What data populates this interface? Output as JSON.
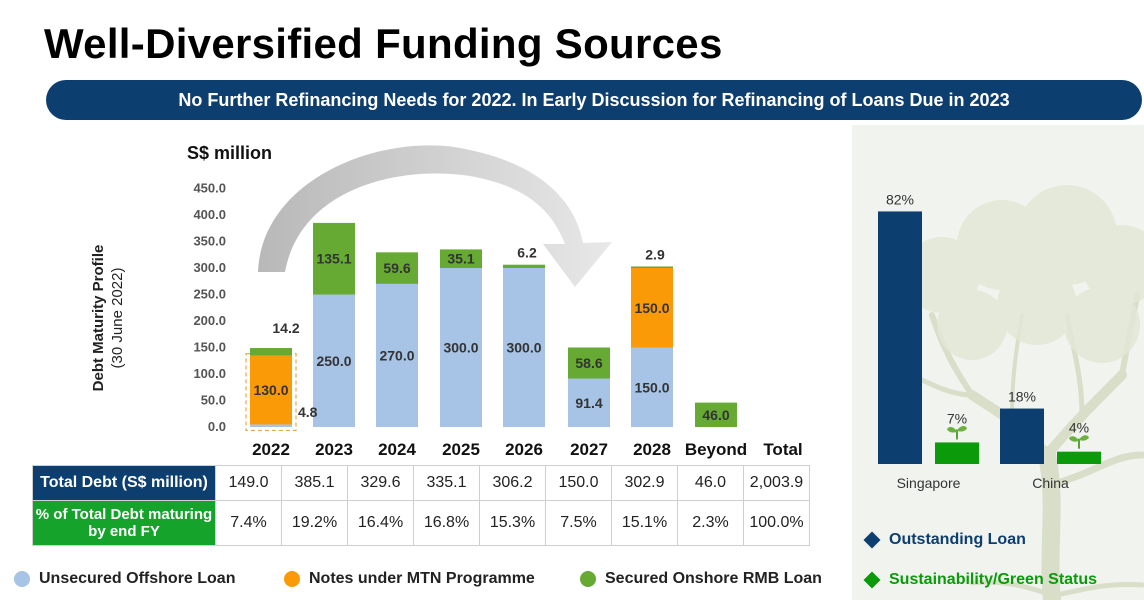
{
  "page": {
    "title": "Well-Diversified Funding Sources",
    "subtitle": "No Further Refinancing Needs for 2022. In Early Discussion for Refinancing of Loans Due in 2023"
  },
  "chart_data": [
    {
      "type": "bar",
      "stacked": true,
      "unit_label": "S$ million",
      "ylabel_line1": "Debt Maturity Profile",
      "ylabel_line2": "(30 June 2022)",
      "ylim": [
        0,
        450
      ],
      "yticks": [
        "0.0",
        "50.0",
        "100.0",
        "150.0",
        "200.0",
        "250.0",
        "300.0",
        "350.0",
        "400.0",
        "450.0"
      ],
      "categories": [
        "2022",
        "2023",
        "2024",
        "2025",
        "2026",
        "2027",
        "2028",
        "Beyond",
        "Total"
      ],
      "series": [
        {
          "name": "Unsecured Offshore Loan",
          "color": "#a7c4e6",
          "values": [
            4.8,
            250.0,
            270.0,
            300.0,
            300.0,
            91.4,
            150.0,
            0,
            null
          ],
          "labels": [
            "4.8",
            "250.0",
            "270.0",
            "300.0",
            "300.0",
            "91.4",
            "150.0",
            "",
            ""
          ]
        },
        {
          "name": "Notes under MTN Programme",
          "color": "#fb9a07",
          "values": [
            130.0,
            0,
            0,
            0,
            0,
            0,
            150.0,
            0,
            null
          ],
          "labels": [
            "130.0",
            "",
            "",
            "",
            "",
            "",
            "150.0",
            "",
            ""
          ]
        },
        {
          "name": "Secured Onshore RMB Loan",
          "color": "#66aa33",
          "values": [
            14.2,
            135.1,
            59.6,
            35.1,
            6.2,
            58.6,
            2.9,
            46.0,
            null
          ],
          "labels": [
            "14.2",
            "135.1",
            "59.6",
            "35.1",
            "6.2",
            "58.6",
            "2.9",
            "46.0",
            ""
          ]
        }
      ],
      "grid": false,
      "legend_position": "bottom"
    },
    {
      "type": "bar",
      "categories": [
        "Singapore",
        "China"
      ],
      "series": [
        {
          "name": "Outstanding Loan",
          "color": "#0d3e70",
          "values": [
            82,
            18
          ],
          "labels": [
            "82%",
            "18%"
          ]
        },
        {
          "name": "Sustainability/Green Status",
          "color": "#0a9a0a",
          "values": [
            7,
            4
          ],
          "labels": [
            "7%",
            "4%"
          ]
        }
      ],
      "ylim": [
        0,
        100
      ],
      "grid": false,
      "legend_position": "bottom"
    }
  ],
  "table": {
    "row1_label": "Total Debt (S$ million)",
    "row1_values": [
      "149.0",
      "385.1",
      "329.6",
      "335.1",
      "306.2",
      "150.0",
      "302.9",
      "46.0",
      "2,003.9"
    ],
    "row2_label": "% of Total Debt maturing by end FY",
    "row2_values": [
      "7.4%",
      "19.2%",
      "16.4%",
      "16.8%",
      "15.3%",
      "7.5%",
      "15.1%",
      "2.3%",
      "100.0%"
    ]
  },
  "legend": {
    "items": [
      {
        "label": "Unsecured Offshore Loan",
        "color": "#a7c4e6"
      },
      {
        "label": "Notes under MTN Programme",
        "color": "#fb9a07"
      },
      {
        "label": "Secured Onshore RMB Loan",
        "color": "#66aa33"
      }
    ]
  },
  "right_legend": {
    "items": [
      {
        "label": "Outstanding Loan",
        "color": "#0d3e70"
      },
      {
        "label": "Sustainability/Green Status",
        "color": "#0a9a0a"
      }
    ]
  }
}
